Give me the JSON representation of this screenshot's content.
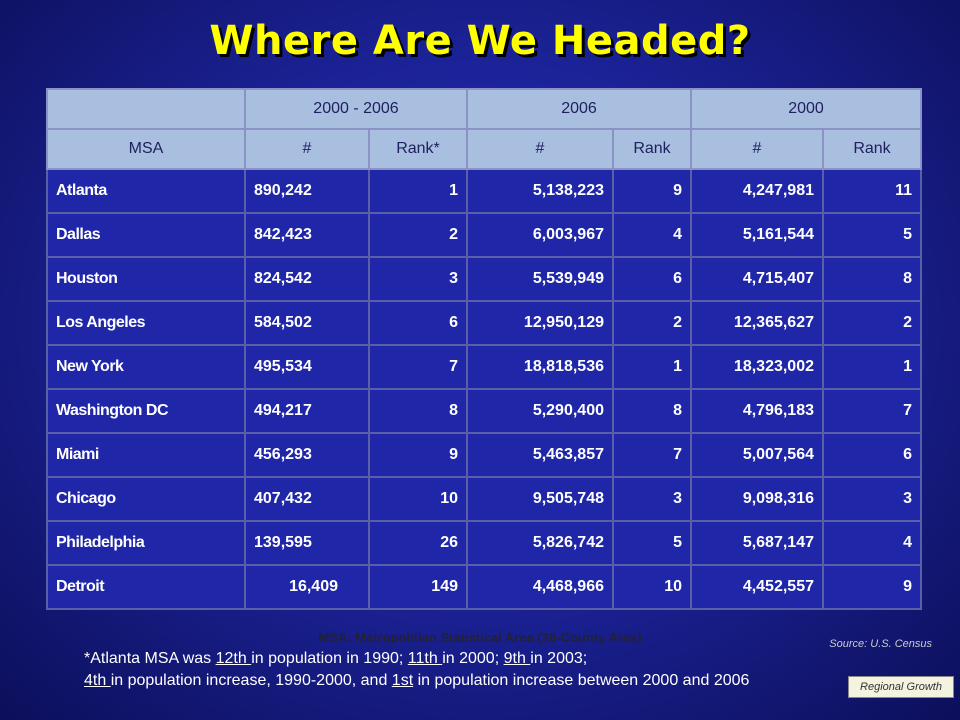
{
  "title": "Where Are We Headed?",
  "table": {
    "group_headers": [
      "",
      "2000 - 2006",
      "2006",
      "2000"
    ],
    "columns": [
      "MSA",
      "#",
      "Rank*",
      "#",
      "Rank",
      "#",
      "Rank"
    ],
    "rows": [
      [
        "Atlanta",
        "890,242",
        "1",
        "5,138,223",
        "9",
        "4,247,981",
        "11"
      ],
      [
        "Dallas",
        "842,423",
        "2",
        "6,003,967",
        "4",
        "5,161,544",
        "5"
      ],
      [
        "Houston",
        "824,542",
        "3",
        "5,539,949",
        "6",
        "4,715,407",
        "8"
      ],
      [
        "Los Angeles",
        "584,502",
        "6",
        "12,950,129",
        "2",
        "12,365,627",
        "2"
      ],
      [
        "New York",
        "495,534",
        "7",
        "18,818,536",
        "1",
        "18,323,002",
        "1"
      ],
      [
        "Washington DC",
        "494,217",
        "8",
        "5,290,400",
        "8",
        "4,796,183",
        "7"
      ],
      [
        "Miami",
        "456,293",
        "9",
        "5,463,857",
        "7",
        "5,007,564",
        "6"
      ],
      [
        "Chicago",
        "407,432",
        "10",
        "9,505,748",
        "3",
        "9,098,316",
        "3"
      ],
      [
        "Philadelphia",
        "139,595",
        "26",
        "5,826,742",
        "5",
        "5,687,147",
        "4"
      ],
      [
        "Detroit",
        "16,409",
        "149",
        "4,468,966",
        "10",
        "4,452,557",
        "9"
      ]
    ]
  },
  "msa_note": "MSA: Metropolitian Statistical Area (28-County Area)",
  "source": "Source: U.S. Census",
  "footnote": {
    "l1_a": "*Atlanta MSA was ",
    "l1_b": "12th ",
    "l1_c": " in  population in 1990; ",
    "l1_d": "11th ",
    "l1_e": " in 2000; ",
    "l1_f": "9th ",
    "l1_g": " in 2003;",
    "l2_a": "4th ",
    "l2_b": " in population increase, 1990-2000, and ",
    "l2_c": "1st",
    "l2_d": " in population increase between 2000 and 2006"
  },
  "badge": "Regional Growth"
}
